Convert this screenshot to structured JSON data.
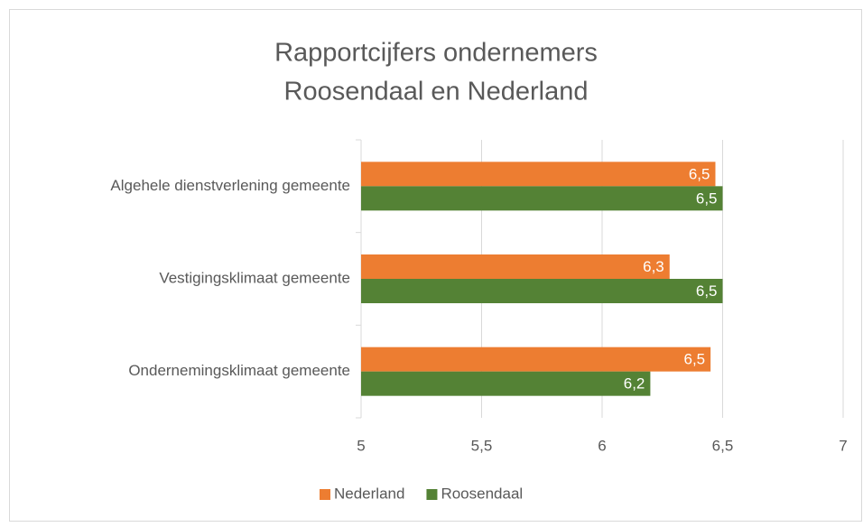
{
  "chart_data": {
    "type": "barh",
    "title": [
      "Rapportcijfers ondernemers",
      "Roosendaal en Nederland"
    ],
    "categories": [
      "Algehele dienstverlening gemeente",
      "Vestigingsklimaat gemeente",
      "Ondernemingsklimaat gemeente"
    ],
    "series": [
      {
        "name": "Nederland",
        "color": "#ed7d31",
        "values": [
          6.47,
          6.28,
          6.45
        ],
        "value_labels": [
          "6,5",
          "6,3",
          "6,5"
        ]
      },
      {
        "name": "Roosendaal",
        "color": "#548235",
        "values": [
          6.5,
          6.5,
          6.2
        ],
        "value_labels": [
          "6,5",
          "6,5",
          "6,2"
        ]
      }
    ],
    "xlim": [
      5,
      7
    ],
    "xticks": [
      5,
      {
        "value": 5.5,
        "label": "5,5"
      },
      6,
      {
        "value": 6.5,
        "label": "6,5"
      },
      7
    ],
    "grid": true,
    "legend": "bottom"
  }
}
